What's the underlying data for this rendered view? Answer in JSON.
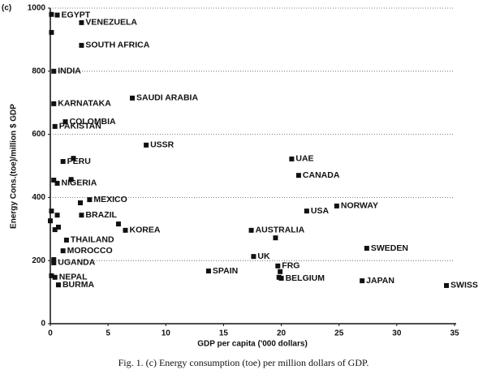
{
  "chart_data": {
    "type": "scatter",
    "panel_label": "(c)",
    "x_label": "GDP per capita ('000 dollars)",
    "y_label": "Energy Cons.(toe)/million $ GDP",
    "caption": "Fig. 1. (c) Energy consumption (toe) per million dollars of GDP.",
    "xlim": [
      0,
      35
    ],
    "ylim": [
      0,
      1000
    ],
    "xticks": [
      0,
      5,
      10,
      15,
      20,
      25,
      30,
      35
    ],
    "yticks": [
      0,
      200,
      400,
      600,
      800,
      1000
    ],
    "grid": true,
    "color": "#111111",
    "x": [
      0.1,
      0.6,
      2.7,
      0.1,
      2.7,
      0.3,
      0.3,
      7.1,
      1.3,
      0.4,
      8.3,
      20.9,
      21.5,
      2.0,
      1.1,
      0.3,
      0.6,
      1.8,
      3.4,
      2.6,
      22.2,
      24.8,
      2.7,
      0.1,
      0.6,
      0,
      0.7,
      0.4,
      6.5,
      5.9,
      17.4,
      19.5,
      1.4,
      27.4,
      1.1,
      0.3,
      0.3,
      17.6,
      13.7,
      19.7,
      19.9,
      19.8,
      20.0,
      0.1,
      0.4,
      27.0,
      0.7,
      34.3
    ],
    "values": [
      980,
      978,
      954,
      923,
      882,
      800,
      697,
      715,
      640,
      625,
      566,
      522,
      470,
      524,
      514,
      455,
      445,
      457,
      393,
      383,
      357,
      373,
      344,
      357,
      344,
      326,
      306,
      298,
      296,
      316,
      296,
      272,
      265,
      239,
      231,
      203,
      193,
      213,
      167,
      183,
      165,
      147,
      144,
      152,
      147,
      136,
      123,
      121
    ],
    "point_labels": [
      null,
      "EGYPT",
      "VENEZUELA",
      null,
      "SOUTH AFRICA",
      "INDIA",
      "KARNATAKA",
      "SAUDI ARABIA",
      "COLOMBIA",
      "PAKISTAN",
      "USSR",
      "UAE",
      "CANADA",
      null,
      "PERU",
      null,
      "NIGERIA",
      null,
      "MEXICO",
      null,
      "USA",
      "NORWAY",
      "BRAZIL",
      null,
      null,
      null,
      null,
      null,
      "KOREA",
      null,
      "AUSTRALIA",
      null,
      "THAILAND",
      "SWEDEN",
      "MOROCCO",
      null,
      "UGANDA",
      "UK",
      "SPAIN",
      "FRG",
      null,
      null,
      "BELGIUM",
      null,
      "NEPAL",
      "JAPAN",
      "BURMA",
      "SWISS"
    ]
  }
}
